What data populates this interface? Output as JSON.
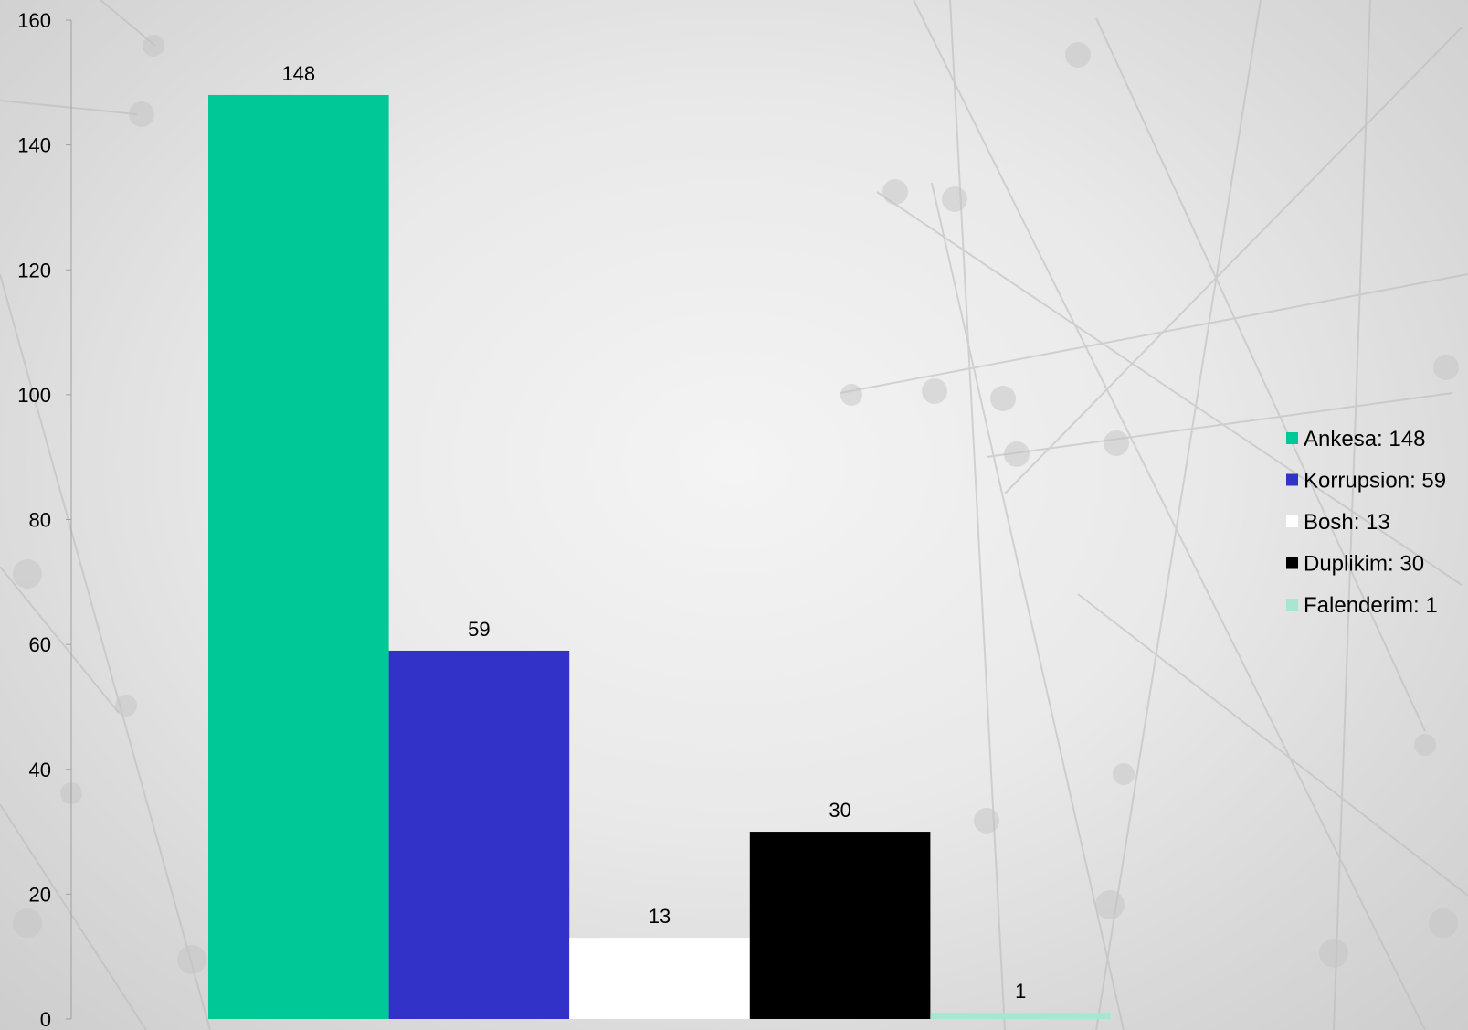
{
  "chart_data": {
    "type": "bar",
    "categories": [
      "Ankesa",
      "Korrupsion",
      "Bosh",
      "Duplikim",
      "Falenderim"
    ],
    "values": [
      148,
      59,
      13,
      30,
      1
    ],
    "colors": [
      "#00c896",
      "#3232c8",
      "#ffffff",
      "#000000",
      "#a8e6d2"
    ],
    "data_labels": [
      "148",
      "59",
      "13",
      "30",
      "1"
    ],
    "ylim": [
      0,
      160
    ],
    "yticks": [
      0,
      20,
      40,
      60,
      80,
      100,
      120,
      140,
      160
    ],
    "legend": {
      "position": "right",
      "entries": [
        "Ankesa: 148",
        "Korrupsion: 59",
        "Bosh: 13",
        "Duplikim: 30",
        "Falenderim: 1"
      ]
    },
    "grid": false,
    "title": "",
    "xlabel": "",
    "ylabel": ""
  }
}
